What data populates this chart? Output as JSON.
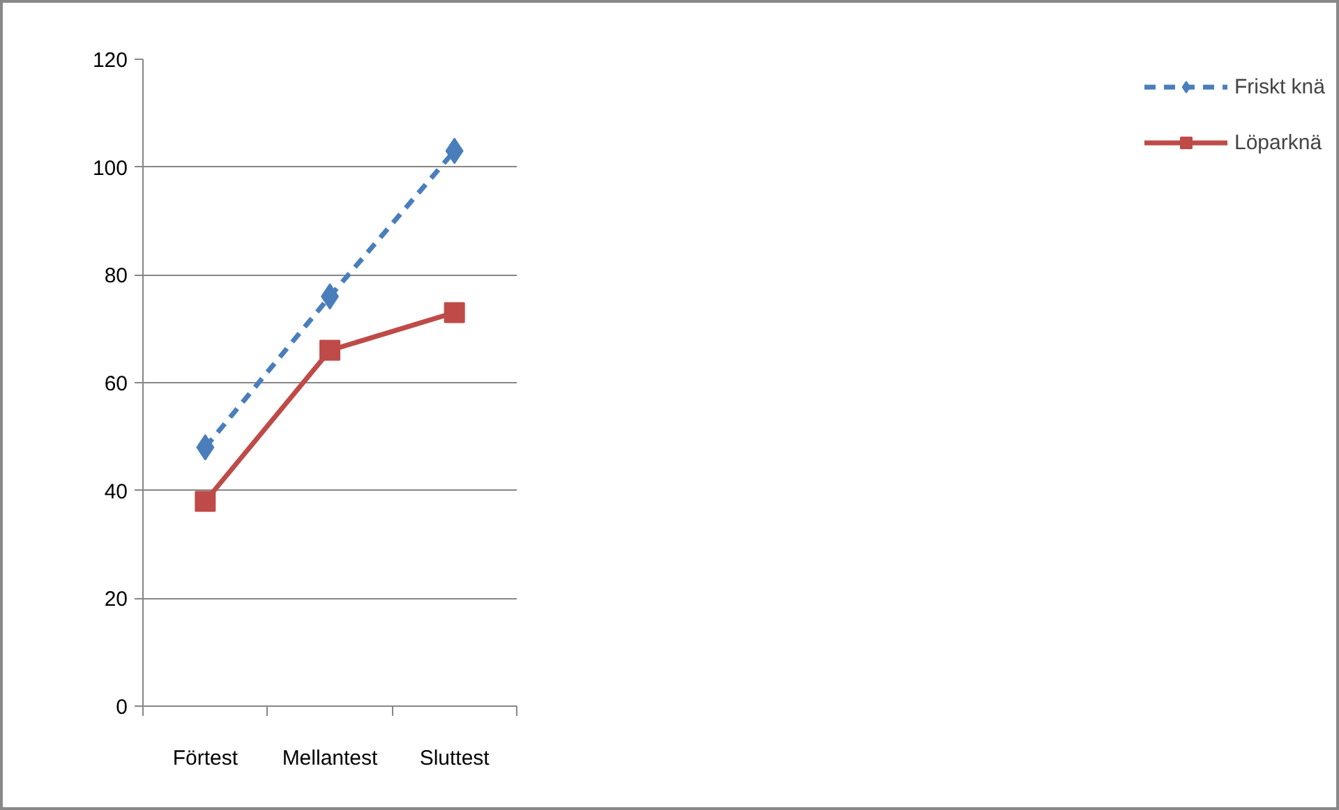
{
  "chart_data": {
    "type": "line",
    "categories": [
      "Förtest",
      "Mellantest",
      "Sluttest"
    ],
    "series": [
      {
        "name": "Friskt knä",
        "color": "#4a7ebb",
        "values": [
          48,
          76,
          103
        ],
        "marker": "diamond",
        "line_style": "dashed"
      },
      {
        "name": "Löparknä",
        "color": "#be4b48",
        "values": [
          38,
          66,
          73
        ],
        "marker": "square",
        "line_style": "solid"
      }
    ],
    "ylim": [
      0,
      120
    ],
    "yticks": [
      0,
      20,
      40,
      60,
      80,
      100,
      120
    ],
    "grid": "y",
    "legend": "right"
  }
}
